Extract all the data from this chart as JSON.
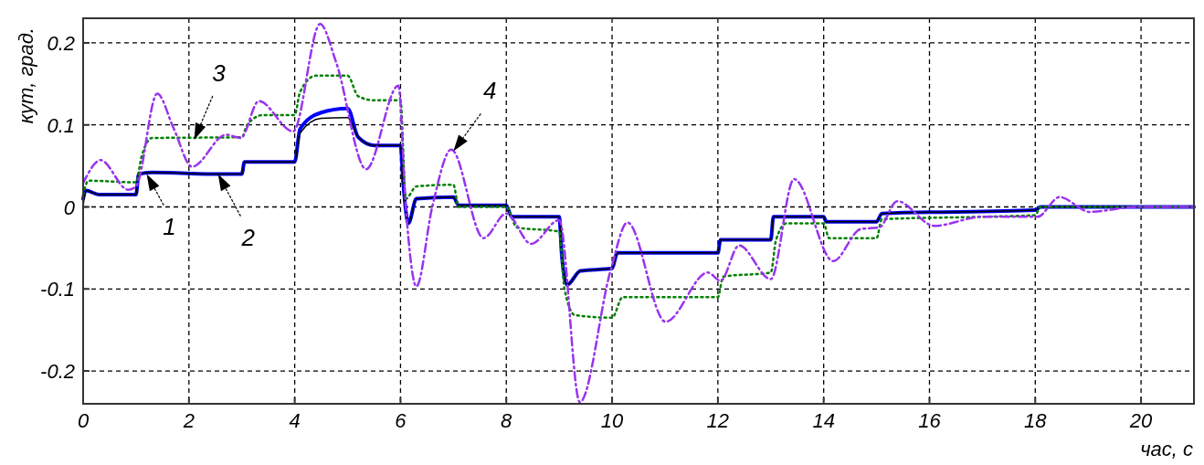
{
  "chart_data": {
    "type": "line",
    "xlabel": "час, с",
    "ylabel": "кут, град.",
    "xlim": [
      0,
      21
    ],
    "ylim": [
      -0.24,
      0.23
    ],
    "xticks": [
      0,
      2,
      4,
      6,
      8,
      10,
      12,
      14,
      16,
      18,
      20
    ],
    "yticks": [
      -0.2,
      -0.1,
      0,
      0.1,
      0.2
    ],
    "grid": true,
    "marker": "none",
    "series": [
      {
        "color": "#0000ff",
        "line_style": "solid",
        "x": [
          0,
          0.05,
          0.3,
          1,
          1.05,
          1.3,
          2.6,
          3,
          3.05,
          4,
          4.1,
          4.5,
          5,
          5.2,
          5.5,
          6,
          6.05,
          6.15,
          6.3,
          7,
          7.1,
          8,
          8.1,
          9,
          9.05,
          9.15,
          9.4,
          10,
          10.1,
          12,
          12.05,
          13,
          13.05,
          14,
          14.05,
          15,
          15.1,
          18,
          18.1,
          21
        ],
        "values": [
          0.01,
          0.02,
          0.015,
          0.015,
          0.04,
          0.042,
          0.04,
          0.04,
          0.055,
          0.055,
          0.095,
          0.115,
          0.12,
          0.085,
          0.075,
          0.075,
          0.03,
          -0.02,
          0.01,
          0.012,
          0.002,
          0.002,
          -0.012,
          -0.012,
          -0.06,
          -0.095,
          -0.078,
          -0.075,
          -0.056,
          -0.056,
          -0.04,
          -0.04,
          -0.012,
          -0.012,
          -0.018,
          -0.018,
          -0.008,
          -0.004,
          0,
          0
        ]
      },
      {
        "color": "#000000",
        "line_style": "solid",
        "x": [
          0,
          0.05,
          0.3,
          1,
          1.05,
          1.3,
          2.6,
          3,
          3.05,
          4,
          4.1,
          4.5,
          5,
          5.2,
          5.5,
          6,
          6.05,
          6.15,
          6.3,
          7,
          7.1,
          8,
          8.1,
          9,
          9.05,
          9.15,
          9.4,
          10,
          10.1,
          12,
          12.05,
          13,
          13.05,
          14,
          14.05,
          15,
          15.1,
          18,
          18.1,
          21
        ],
        "values": [
          0,
          0.02,
          0.015,
          0.015,
          0.04,
          0.042,
          0.04,
          0.04,
          0.055,
          0.055,
          0.09,
          0.108,
          0.109,
          0.085,
          0.075,
          0.075,
          0.03,
          -0.02,
          0.01,
          0.012,
          0.002,
          0.002,
          -0.012,
          -0.012,
          -0.06,
          -0.095,
          -0.078,
          -0.075,
          -0.056,
          -0.056,
          -0.04,
          -0.04,
          -0.012,
          -0.012,
          -0.018,
          -0.018,
          -0.008,
          -0.004,
          0,
          0
        ]
      },
      {
        "color": "#008000",
        "line_style": "dotted",
        "x": [
          0,
          0.1,
          1,
          1.1,
          1.3,
          3,
          3.1,
          3.4,
          4,
          4.1,
          4.4,
          5,
          5.2,
          5.5,
          6,
          6.1,
          6.3,
          7,
          7.1,
          8,
          8.2,
          9,
          9.1,
          9.3,
          10,
          10.2,
          12,
          12.1,
          13,
          13.1,
          13.3,
          14,
          14.1,
          15,
          15.1,
          17,
          18,
          18.1,
          21
        ],
        "values": [
          0.015,
          0.032,
          0.03,
          0.06,
          0.084,
          0.085,
          0.1,
          0.112,
          0.112,
          0.14,
          0.16,
          0.16,
          0.135,
          0.13,
          0.13,
          0.01,
          0.025,
          0.027,
          0,
          0,
          -0.025,
          -0.03,
          -0.1,
          -0.132,
          -0.135,
          -0.11,
          -0.11,
          -0.085,
          -0.08,
          -0.04,
          -0.02,
          -0.02,
          -0.038,
          -0.038,
          -0.015,
          -0.012,
          -0.01,
          0,
          0
        ]
      },
      {
        "color": "#9933ee",
        "line_style": "dashed",
        "x": [
          0,
          0.33,
          0.85,
          1,
          1.4,
          1.71,
          2.06,
          2.7,
          2.98,
          3.32,
          3.97,
          4.48,
          4.78,
          5.35,
          5.96,
          6.1,
          6.3,
          6.6,
          6.96,
          7.57,
          8.0,
          8.47,
          9.0,
          9.39,
          9.97,
          10.29,
          11.01,
          11.81,
          12.05,
          12.4,
          13.0,
          13.44,
          14.18,
          14.7,
          15.05,
          15.39,
          16.09,
          17.0,
          18.04,
          18.46,
          19.03,
          19.9,
          21
        ],
        "values": [
          0.029,
          0.057,
          0.021,
          0.025,
          0.138,
          0.096,
          0.049,
          0.088,
          0.084,
          0.129,
          0.092,
          0.223,
          0.177,
          0.046,
          0.148,
          0,
          -0.097,
          0,
          0.07,
          -0.038,
          -0.008,
          -0.045,
          -0.016,
          -0.238,
          -0.078,
          -0.019,
          -0.14,
          -0.08,
          -0.09,
          -0.047,
          -0.088,
          0.034,
          -0.066,
          -0.027,
          -0.025,
          0.007,
          -0.023,
          -0.012,
          -0.012,
          0.012,
          -0.006,
          0,
          0
        ]
      }
    ],
    "annotations": [
      {
        "text": "1",
        "x": 1.2,
        "y": 0.04
      },
      {
        "text": "2",
        "x": 2.55,
        "y": 0.04
      },
      {
        "text": "3",
        "x": 2.1,
        "y": 0.082
      },
      {
        "text": "4",
        "x": 7.0,
        "y": 0.068
      }
    ]
  }
}
